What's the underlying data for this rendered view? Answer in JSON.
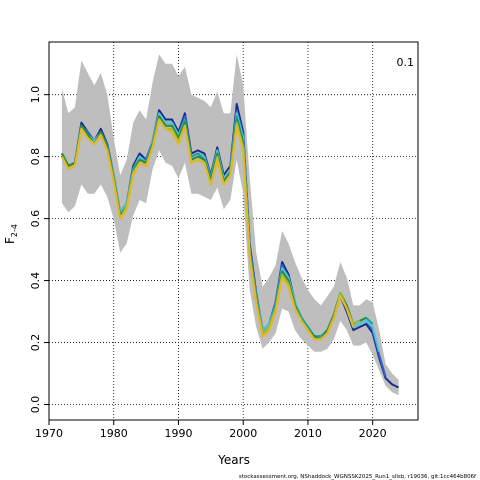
{
  "chart_data": {
    "type": "line",
    "xlabel": "Years",
    "ylabel": "F",
    "ylabel_sub": "2-4",
    "panel_label": "0.1",
    "footer": "stockassessment.org, NShaddock_WGNSSK2025_Run1_sllsb, r19036, git:1cc464b806f",
    "xlim": [
      1970,
      2027
    ],
    "ylim": [
      -0.05,
      1.17
    ],
    "x_ticks": [
      1970,
      1980,
      1990,
      2000,
      2010,
      2020
    ],
    "y_ticks": [
      0.0,
      0.2,
      0.4,
      0.6,
      0.8,
      1.0
    ],
    "grid": true,
    "colors": {
      "ci_band": "#bebebe",
      "retro_dark": "#1a2a8c",
      "retro_mid": "#2f63c8",
      "retro_cyan": "#52c7d6",
      "retro_teal": "#17a59b",
      "retro_green": "#2e8b3a",
      "retro_olive": "#8dbf3c",
      "retro_gold": "#e3b823"
    },
    "years": [
      1972,
      1973,
      1974,
      1975,
      1976,
      1977,
      1978,
      1979,
      1980,
      1981,
      1982,
      1983,
      1984,
      1985,
      1986,
      1987,
      1988,
      1989,
      1990,
      1991,
      1992,
      1993,
      1994,
      1995,
      1996,
      1997,
      1998,
      1999,
      2000,
      2001,
      2002,
      2003,
      2004,
      2005,
      2006,
      2007,
      2008,
      2009,
      2010,
      2011,
      2012,
      2013,
      2014,
      2015,
      2016,
      2017,
      2018,
      2019,
      2020,
      2021,
      2022,
      2023,
      2024
    ],
    "ci_upper": [
      1.02,
      0.94,
      0.96,
      1.11,
      1.07,
      1.03,
      1.07,
      1.0,
      0.86,
      0.74,
      0.79,
      0.91,
      0.95,
      0.92,
      1.04,
      1.13,
      1.1,
      1.1,
      1.06,
      1.09,
      1.0,
      0.99,
      0.98,
      0.96,
      1.01,
      0.94,
      0.94,
      1.13,
      1.03,
      0.73,
      0.49,
      0.38,
      0.41,
      0.45,
      0.56,
      0.52,
      0.46,
      0.41,
      0.37,
      0.34,
      0.32,
      0.35,
      0.38,
      0.46,
      0.41,
      0.32,
      0.32,
      0.34,
      0.33,
      0.24,
      0.13,
      0.1,
      0.08
    ],
    "ci_lower": [
      0.65,
      0.62,
      0.64,
      0.71,
      0.68,
      0.68,
      0.71,
      0.67,
      0.6,
      0.49,
      0.52,
      0.61,
      0.66,
      0.65,
      0.76,
      0.82,
      0.78,
      0.77,
      0.73,
      0.78,
      0.68,
      0.68,
      0.67,
      0.66,
      0.7,
      0.63,
      0.66,
      0.79,
      0.68,
      0.37,
      0.25,
      0.18,
      0.2,
      0.23,
      0.31,
      0.3,
      0.24,
      0.21,
      0.19,
      0.17,
      0.17,
      0.18,
      0.21,
      0.27,
      0.24,
      0.19,
      0.19,
      0.2,
      0.16,
      0.11,
      0.06,
      0.04,
      0.03
    ],
    "series": [
      {
        "values": [
          0.81,
          0.77,
          0.78,
          0.91,
          0.88,
          0.85,
          0.89,
          0.84,
          0.74,
          0.62,
          0.65,
          0.77,
          0.81,
          0.79,
          0.85,
          0.95,
          0.92,
          0.92,
          0.88,
          0.94,
          0.81,
          0.82,
          0.81,
          0.74,
          0.83,
          0.74,
          0.77,
          0.97,
          0.88,
          0.52,
          0.36,
          0.24,
          0.26,
          0.33,
          0.46,
          0.42,
          0.33,
          0.28,
          0.25,
          0.22,
          0.22,
          0.24,
          0.28,
          0.35,
          0.3,
          0.24,
          0.25,
          0.26,
          0.23,
          0.15,
          0.085,
          0.065,
          0.055
        ]
      },
      {
        "values": [
          0.81,
          0.77,
          0.78,
          0.9,
          0.88,
          0.85,
          0.88,
          0.84,
          0.74,
          0.62,
          0.65,
          0.76,
          0.8,
          0.79,
          0.85,
          0.94,
          0.91,
          0.91,
          0.87,
          0.93,
          0.8,
          0.81,
          0.8,
          0.74,
          0.82,
          0.73,
          0.76,
          0.95,
          0.87,
          0.51,
          0.35,
          0.24,
          0.26,
          0.33,
          0.45,
          0.41,
          0.33,
          0.28,
          0.25,
          0.22,
          0.22,
          0.24,
          0.28,
          0.35,
          0.31,
          0.25,
          0.26,
          0.27,
          0.24,
          0.16,
          0.09
        ]
      },
      {
        "values": [
          0.81,
          0.77,
          0.78,
          0.9,
          0.87,
          0.85,
          0.88,
          0.83,
          0.74,
          0.62,
          0.65,
          0.76,
          0.8,
          0.78,
          0.85,
          0.94,
          0.91,
          0.91,
          0.87,
          0.92,
          0.8,
          0.81,
          0.8,
          0.73,
          0.82,
          0.73,
          0.76,
          0.94,
          0.86,
          0.5,
          0.35,
          0.24,
          0.26,
          0.32,
          0.44,
          0.41,
          0.33,
          0.28,
          0.25,
          0.22,
          0.22,
          0.24,
          0.29,
          0.36,
          0.31,
          0.25,
          0.26,
          0.27,
          0.25,
          0.17
        ]
      },
      {
        "values": [
          0.81,
          0.77,
          0.78,
          0.9,
          0.87,
          0.84,
          0.88,
          0.83,
          0.73,
          0.61,
          0.64,
          0.76,
          0.79,
          0.78,
          0.84,
          0.93,
          0.9,
          0.9,
          0.86,
          0.92,
          0.8,
          0.81,
          0.79,
          0.73,
          0.81,
          0.72,
          0.75,
          0.93,
          0.85,
          0.5,
          0.34,
          0.23,
          0.25,
          0.32,
          0.43,
          0.4,
          0.32,
          0.28,
          0.25,
          0.22,
          0.22,
          0.24,
          0.29,
          0.36,
          0.31,
          0.26,
          0.27,
          0.28,
          0.26
        ]
      },
      {
        "values": [
          0.81,
          0.77,
          0.78,
          0.9,
          0.87,
          0.84,
          0.88,
          0.83,
          0.73,
          0.61,
          0.64,
          0.75,
          0.79,
          0.78,
          0.84,
          0.93,
          0.9,
          0.9,
          0.86,
          0.91,
          0.79,
          0.8,
          0.79,
          0.72,
          0.81,
          0.72,
          0.75,
          0.92,
          0.84,
          0.49,
          0.34,
          0.23,
          0.25,
          0.31,
          0.43,
          0.4,
          0.32,
          0.27,
          0.24,
          0.22,
          0.21,
          0.24,
          0.29,
          0.36,
          0.32,
          0.26,
          0.27,
          0.28
        ]
      },
      {
        "values": [
          0.8,
          0.76,
          0.77,
          0.89,
          0.86,
          0.84,
          0.87,
          0.82,
          0.72,
          0.6,
          0.64,
          0.75,
          0.78,
          0.77,
          0.83,
          0.92,
          0.89,
          0.89,
          0.85,
          0.9,
          0.78,
          0.79,
          0.78,
          0.71,
          0.8,
          0.71,
          0.74,
          0.91,
          0.83,
          0.48,
          0.33,
          0.23,
          0.25,
          0.31,
          0.42,
          0.39,
          0.31,
          0.27,
          0.24,
          0.21,
          0.21,
          0.23,
          0.28,
          0.36,
          0.31,
          0.26,
          0.27
        ]
      },
      {
        "values": [
          0.8,
          0.76,
          0.77,
          0.89,
          0.86,
          0.84,
          0.87,
          0.82,
          0.72,
          0.6,
          0.63,
          0.74,
          0.78,
          0.77,
          0.83,
          0.92,
          0.89,
          0.88,
          0.84,
          0.9,
          0.78,
          0.79,
          0.78,
          0.71,
          0.79,
          0.71,
          0.74,
          0.9,
          0.82,
          0.48,
          0.33,
          0.22,
          0.24,
          0.3,
          0.41,
          0.38,
          0.31,
          0.27,
          0.24,
          0.21,
          0.21,
          0.23,
          0.28,
          0.35,
          0.31,
          0.25
        ]
      }
    ]
  }
}
